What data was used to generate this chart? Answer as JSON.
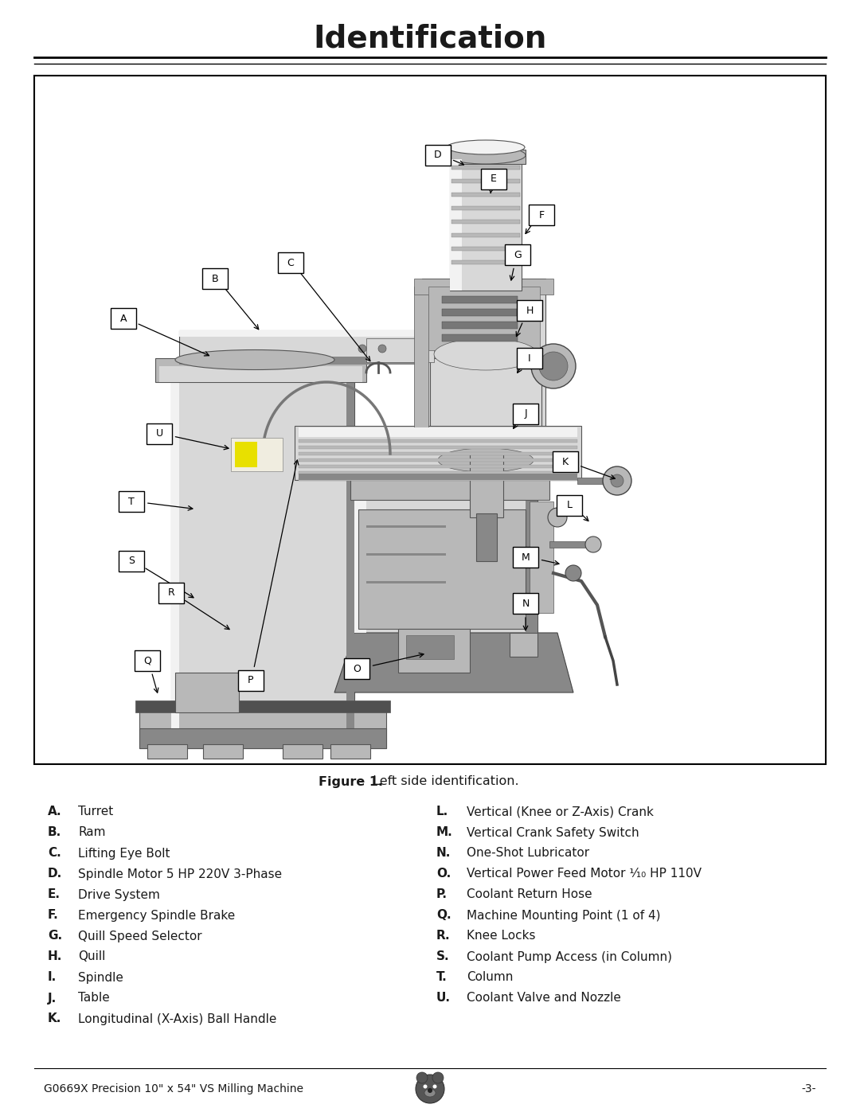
{
  "title": "Identification",
  "figure_caption_bold": "Figure 1.",
  "figure_caption_normal": " Left side identification.",
  "footer_left": "G0669X Precision 10\" x 54\" VS Milling Machine",
  "footer_right": "-3-",
  "bg_color": "#ffffff",
  "text_color": "#1a1a1a",
  "parts_left": [
    [
      "A.",
      "Turret"
    ],
    [
      "B.",
      "Ram"
    ],
    [
      "C.",
      "Lifting Eye Bolt"
    ],
    [
      "D.",
      "Spindle Motor 5 HP 220V 3-Phase"
    ],
    [
      "E.",
      "Drive System"
    ],
    [
      "F.",
      "Emergency Spindle Brake"
    ],
    [
      "G.",
      "Quill Speed Selector"
    ],
    [
      "H.",
      "Quill"
    ],
    [
      "I.",
      "Spindle"
    ],
    [
      "J.",
      "Table"
    ],
    [
      "K.",
      "Longitudinal (X-Axis) Ball Handle"
    ]
  ],
  "parts_right": [
    [
      "L.",
      "Vertical (Knee or Z-Axis) Crank"
    ],
    [
      "M.",
      "Vertical Crank Safety Switch"
    ],
    [
      "N.",
      "One-Shot Lubricator"
    ],
    [
      "O.",
      "Vertical Power Feed Motor ¹⁄₁₀ HP 110V"
    ],
    [
      "P.",
      "Coolant Return Hose"
    ],
    [
      "Q.",
      "Machine Mounting Point (1 of 4)"
    ],
    [
      "R.",
      "Knee Locks"
    ],
    [
      "S.",
      "Coolant Pump Access (in Column)"
    ],
    [
      "T.",
      "Column"
    ],
    [
      "U.",
      "Coolant Valve and Nozzle"
    ]
  ]
}
